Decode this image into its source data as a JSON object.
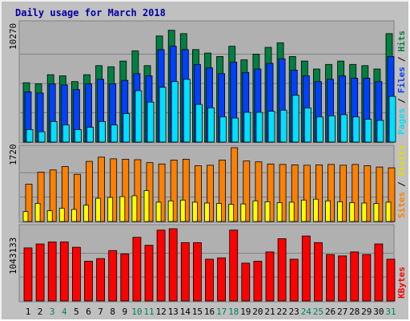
{
  "title": "Daily usage for March 2018",
  "colors": {
    "hits": "#008040",
    "files": "#0040ff",
    "pages": "#00e0ff",
    "visits": "#ffff00",
    "sites": "#ff8000",
    "kbytes": "#ff0000",
    "weekend_day": "#00805c",
    "weekday": "#000000"
  },
  "chart_data": [
    {
      "type": "bar",
      "panel": "top",
      "ymax_label": "10270",
      "legend": [
        "Pages",
        "/",
        "Files",
        "/",
        "Hits"
      ],
      "categories": [
        "1",
        "2",
        "3",
        "4",
        "5",
        "6",
        "7",
        "8",
        "9",
        "10",
        "11",
        "12",
        "13",
        "14",
        "15",
        "16",
        "17",
        "18",
        "19",
        "20",
        "21",
        "22",
        "23",
        "24",
        "25",
        "26",
        "27",
        "28",
        "29",
        "30",
        "31"
      ],
      "series": [
        {
          "name": "Hits",
          "values": [
            5200,
            5100,
            5900,
            5800,
            5300,
            5900,
            6700,
            6600,
            7100,
            8000,
            6700,
            9300,
            9800,
            9500,
            8100,
            7800,
            7500,
            8400,
            7200,
            7700,
            8300,
            8700,
            7500,
            7100,
            6400,
            6800,
            7100,
            6800,
            6700,
            6400,
            9500
          ]
        },
        {
          "name": "Files",
          "values": [
            4400,
            4300,
            5100,
            5000,
            4600,
            5100,
            5500,
            5100,
            5400,
            6000,
            5800,
            8100,
            8400,
            8100,
            6800,
            6500,
            6000,
            7000,
            6100,
            6400,
            6900,
            7300,
            6300,
            5800,
            5300,
            5500,
            5800,
            5600,
            5600,
            5300,
            7500
          ]
        },
        {
          "name": "Pages",
          "values": [
            1100,
            900,
            1800,
            1500,
            1100,
            1300,
            1800,
            1500,
            2500,
            4500,
            3500,
            4800,
            5300,
            5500,
            3300,
            3000,
            2200,
            2100,
            2600,
            2600,
            2700,
            2800,
            4100,
            3000,
            2200,
            2300,
            2400,
            2200,
            2000,
            1900,
            4000
          ]
        }
      ]
    },
    {
      "type": "bar",
      "panel": "middle",
      "ymax_label": "1720",
      "legend": [
        "Sites",
        "/",
        "Visits"
      ],
      "categories": [
        "1",
        "2",
        "3",
        "4",
        "5",
        "6",
        "7",
        "8",
        "9",
        "10",
        "11",
        "12",
        "13",
        "14",
        "15",
        "16",
        "17",
        "18",
        "19",
        "20",
        "21",
        "22",
        "23",
        "24",
        "25",
        "26",
        "27",
        "28",
        "29",
        "30",
        "31"
      ],
      "series": [
        {
          "name": "Visits",
          "values": [
            230,
            420,
            250,
            310,
            280,
            380,
            540,
            560,
            580,
            600,
            720,
            450,
            480,
            500,
            450,
            430,
            420,
            400,
            410,
            480,
            460,
            440,
            450,
            500,
            520,
            480,
            460,
            440,
            430,
            420,
            450
          ]
        },
        {
          "name": "Sites",
          "values": [
            870,
            1150,
            1200,
            1280,
            1100,
            1400,
            1500,
            1460,
            1450,
            1440,
            1370,
            1340,
            1430,
            1450,
            1300,
            1310,
            1430,
            1720,
            1410,
            1390,
            1340,
            1330,
            1320,
            1310,
            1320,
            1330,
            1310,
            1330,
            1300,
            1270,
            1250
          ]
        }
      ]
    },
    {
      "type": "bar",
      "panel": "bottom",
      "ymax_label": "1043133",
      "legend": [
        "KBytes"
      ],
      "categories": [
        "1",
        "2",
        "3",
        "4",
        "5",
        "6",
        "7",
        "8",
        "9",
        "10",
        "11",
        "12",
        "13",
        "14",
        "15",
        "16",
        "17",
        "18",
        "19",
        "20",
        "21",
        "22",
        "23",
        "24",
        "25",
        "26",
        "27",
        "28",
        "29",
        "30",
        "31"
      ],
      "series": [
        {
          "name": "KBytes",
          "values": [
            800000,
            860000,
            890000,
            890000,
            810000,
            600000,
            640000,
            760000,
            710000,
            960000,
            840000,
            1070000,
            1090000,
            880000,
            880000,
            630000,
            650000,
            1070000,
            570000,
            600000,
            740000,
            940000,
            630000,
            980000,
            880000,
            700000,
            680000,
            740000,
            700000,
            860000,
            630000
          ]
        }
      ]
    }
  ]
}
